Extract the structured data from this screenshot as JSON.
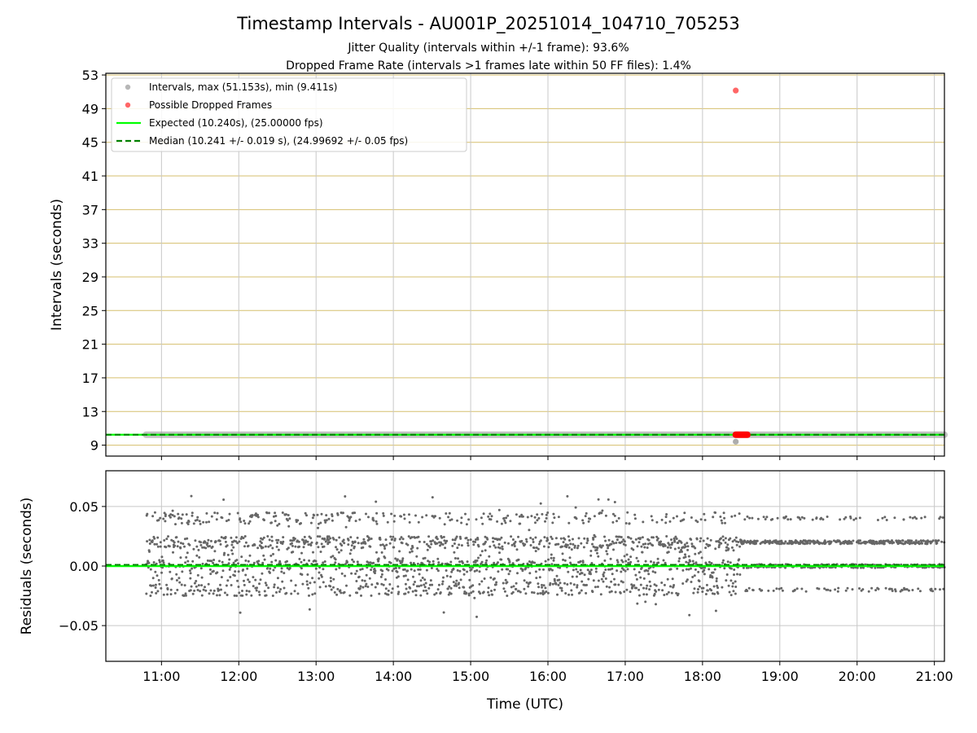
{
  "chart_data": {
    "type": "scatter",
    "title": "Timestamp Intervals - AU001P_20251014_104710_705253",
    "subtitle_lines": [
      "Jitter Quality (intervals within +/-1 frame): 93.6%",
      "Dropped Frame Rate (intervals >1 frames late within 50 FF files): 1.4%"
    ],
    "xlabel": "Time (UTC)",
    "x_range_hours": [
      10.28,
      21.13
    ],
    "x_ticks": [
      11,
      12,
      13,
      14,
      15,
      16,
      17,
      18,
      19,
      20,
      21
    ],
    "x_tick_labels": [
      "11:00",
      "12:00",
      "13:00",
      "14:00",
      "15:00",
      "16:00",
      "17:00",
      "18:00",
      "19:00",
      "20:00",
      "21:00"
    ],
    "top_panel": {
      "ylabel": "Intervals (seconds)",
      "ylim": [
        7.7,
        53.2
      ],
      "y_ticks": [
        9,
        13,
        17,
        21,
        25,
        29,
        33,
        37,
        41,
        45,
        49,
        53
      ],
      "y_tick_labels": [
        "9",
        "13",
        "17",
        "21",
        "25",
        "29",
        "33",
        "37",
        "41",
        "45",
        "49",
        "53"
      ],
      "expected_interval": 10.24,
      "median_interval": 10.241,
      "interval_points": {
        "x_start_hours": 10.8,
        "x_end_hours": 21.13,
        "typical_value": 10.24
      },
      "min_point": {
        "x_hours": 18.43,
        "y": 9.411
      },
      "max_point": {
        "x_hours": 18.43,
        "y": 51.153
      },
      "dropped_cluster": {
        "x_start_hours": 18.43,
        "x_end_hours": 18.58,
        "y": 10.24
      },
      "legend": [
        "Intervals, max (51.153s), min (9.411s)",
        "Possible Dropped Frames",
        "Expected (10.240s), (25.00000 fps)",
        "Median (10.241 +/- 0.019 s), (24.99692 +/- 0.05 fps)"
      ]
    },
    "bottom_panel": {
      "ylabel": "Residuals (seconds)",
      "ylim": [
        -0.08,
        0.08
      ],
      "y_ticks": [
        -0.05,
        0.0,
        0.05
      ],
      "y_tick_labels": [
        "−0.05",
        "0.00",
        "0.05"
      ],
      "residual_levels": [
        -0.02,
        0.0,
        0.02,
        0.04
      ],
      "residual_spread_before_1850": 0.01,
      "residual_spread_after_1850": 0.003,
      "residual_range_observed": [
        -0.043,
        0.063
      ]
    },
    "colors": {
      "intervals": "#999999",
      "dropped": "#ff0000",
      "expected": "#00ff00",
      "median": "#008000",
      "residuals": "#666666",
      "hgrid_top": "#d6bf6e",
      "grid": "#c8c8c8"
    }
  }
}
